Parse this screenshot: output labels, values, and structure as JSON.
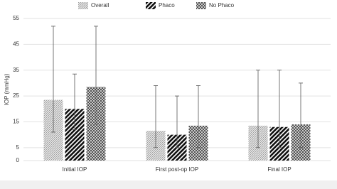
{
  "chart_data": {
    "type": "bar",
    "y_label": "IOP (mmHg)",
    "categories": [
      "Initial IOP",
      "First post-op IOP",
      "Final IOP"
    ],
    "series": [
      {
        "name": "Overall",
        "color": "#9a9a9a",
        "values": [
          23.5,
          11.5,
          13.5
        ],
        "low": [
          11,
          5,
          5
        ],
        "high": [
          52,
          29,
          35
        ]
      },
      {
        "name": "Phaco",
        "color": "#111111",
        "values": [
          20,
          10,
          13
        ],
        "low": [
          12,
          5,
          5
        ],
        "high": [
          33.5,
          25,
          35
        ]
      },
      {
        "name": "No Phaco",
        "color": "#4a4a4a",
        "values": [
          28.5,
          13.5,
          14
        ],
        "low": [
          14,
          5,
          5
        ],
        "high": [
          52,
          29,
          30
        ]
      }
    ],
    "ylim": [
      0,
      55
    ],
    "yticks": [
      0,
      5,
      15,
      25,
      35,
      45,
      55
    ],
    "grid": true,
    "legend": "top"
  }
}
